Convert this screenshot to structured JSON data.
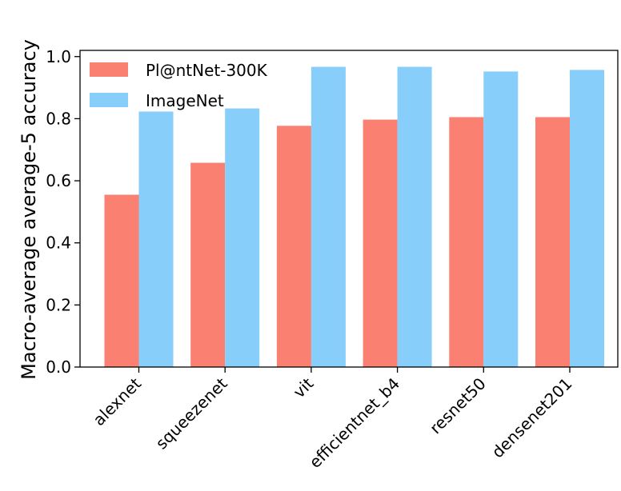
{
  "chart_data": {
    "type": "bar",
    "title": "",
    "xlabel": "",
    "ylabel": "Macro-average average-5 accuracy",
    "ylim": [
      0,
      1.02
    ],
    "yticks": [
      "0.0",
      "0.2",
      "0.4",
      "0.6",
      "0.8",
      "1.0"
    ],
    "categories": [
      "alexnet",
      "squeezenet",
      "vit",
      "efficientnet_b4",
      "resnet50",
      "densenet201"
    ],
    "series": [
      {
        "name": "Pl@ntNet-300K",
        "color": "#fa8072",
        "values": [
          0.555,
          0.658,
          0.777,
          0.797,
          0.805,
          0.805
        ]
      },
      {
        "name": "ImageNet",
        "color": "#87cefa",
        "values": [
          0.823,
          0.833,
          0.967,
          0.967,
          0.952,
          0.957
        ]
      }
    ],
    "legend_position": "top-left",
    "grid": false
  }
}
